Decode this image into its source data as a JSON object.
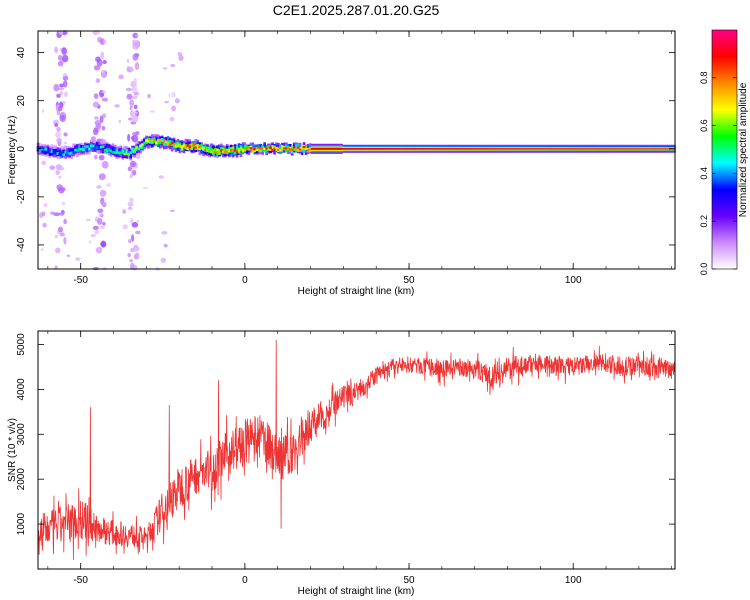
{
  "title": "C2E1.2025.287.01.20.G25",
  "colors": {
    "snr_line": "#ee3333",
    "frame": "#000000",
    "background": "#ffffff"
  },
  "chart_data": [
    {
      "id": "spectrogram",
      "type": "heatmap",
      "xlabel": "Height of straight line (km)",
      "ylabel": "Frequency (Hz)",
      "xlim": [
        -63,
        131
      ],
      "ylim": [
        -50,
        49
      ],
      "xticks": [
        -50,
        0,
        50,
        100
      ],
      "xtick_labels": [
        "-50",
        "0",
        "50",
        "100"
      ],
      "yticks": [
        -40,
        -20,
        0,
        20,
        40
      ],
      "ytick_labels": [
        "-40",
        "-20",
        "0",
        "20",
        "40"
      ],
      "colorbar": {
        "label": "Normalized spectral amplitude",
        "range": [
          0,
          1
        ],
        "ticks": [
          0.0,
          0.2,
          0.4,
          0.6,
          0.8
        ],
        "tick_labels": [
          "0.0",
          "0.2",
          "0.4",
          "0.6",
          "0.8"
        ],
        "colormap": [
          "#ffffff",
          "#cc88ff",
          "#6600ff",
          "#0000ff",
          "#00ffff",
          "#00ff00",
          "#ffff00",
          "#ff8800",
          "#ff0000",
          "#ff0088"
        ]
      },
      "ridge": {
        "x": [
          -63,
          -55,
          -50,
          -45,
          -40,
          -35,
          -30,
          -25,
          -20,
          -15,
          -10,
          -5,
          0,
          10,
          20,
          30,
          50,
          80,
          131
        ],
        "frequency": [
          0,
          -2,
          0,
          1,
          -1,
          -2,
          3,
          3,
          1,
          1,
          -1,
          -1,
          0,
          0,
          0,
          0,
          0,
          0,
          0
        ],
        "amplitude": [
          0.4,
          0.45,
          0.5,
          0.45,
          0.55,
          0.6,
          0.7,
          0.8,
          0.8,
          0.8,
          0.75,
          0.8,
          0.85,
          0.9,
          0.9,
          0.9,
          0.88,
          0.85,
          0.82
        ]
      },
      "noise_columns_x": [
        -56,
        -44,
        -34
      ]
    },
    {
      "id": "snr",
      "type": "line",
      "xlabel": "Height of straight line (km)",
      "ylabel": "SNR (10 * v/v)",
      "xlim": [
        -63,
        131
      ],
      "ylim": [
        0,
        5300
      ],
      "xticks": [
        -50,
        0,
        50,
        100
      ],
      "xtick_labels": [
        "-50",
        "0",
        "50",
        "100"
      ],
      "yticks": [
        1000,
        2000,
        3000,
        4000,
        5000
      ],
      "ytick_labels": [
        "1000",
        "2000",
        "3000",
        "4000",
        "5000"
      ],
      "envelope": {
        "x": [
          -63,
          -55,
          -50,
          -45,
          -40,
          -35,
          -30,
          -25,
          -20,
          -15,
          -10,
          -5,
          0,
          5,
          10,
          15,
          20,
          25,
          30,
          35,
          40,
          45,
          50,
          55,
          60,
          65,
          70,
          75,
          80,
          85,
          90,
          95,
          100,
          105,
          110,
          115,
          120,
          125,
          131
        ],
        "mean": [
          800,
          1000,
          1100,
          900,
          800,
          750,
          700,
          1300,
          1800,
          2100,
          2200,
          2600,
          2800,
          2950,
          2500,
          2600,
          3200,
          3500,
          3800,
          4000,
          4300,
          4500,
          4550,
          4500,
          4450,
          4500,
          4450,
          4300,
          4450,
          4550,
          4600,
          4500,
          4500,
          4550,
          4600,
          4500,
          4550,
          4450,
          4500
        ],
        "spread": [
          700,
          800,
          900,
          600,
          500,
          500,
          400,
          800,
          900,
          800,
          900,
          900,
          1000,
          900,
          800,
          900,
          700,
          600,
          500,
          400,
          350,
          350,
          350,
          350,
          400,
          350,
          400,
          500,
          500,
          400,
          400,
          400,
          400,
          400,
          400,
          400,
          400,
          400,
          400
        ]
      },
      "spikes": [
        {
          "x": -47,
          "value": 3600
        },
        {
          "x": -23,
          "value": 3650
        },
        {
          "x": -8,
          "value": 4200
        },
        {
          "x": 9.5,
          "value": 5100
        },
        {
          "x": 11,
          "value": 900
        }
      ]
    }
  ]
}
